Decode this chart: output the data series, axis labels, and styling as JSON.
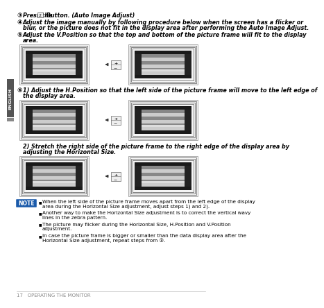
{
  "bg_color": "#ffffff",
  "sidebar_color": "#555555",
  "sidebar_text": "ENGLISH",
  "note_bg": "#1a5aaa",
  "note_text_color": "#ffffff",
  "note_label": "NOTE",
  "footer_text": "17   OPERATING THE MONITOR",
  "step3_circle": "③",
  "step3_text_a": "Press the ",
  "step3_btn": "2",
  "step3_text_b": " Button. (Auto Image Adjust)",
  "step4_circle": "④",
  "step4_line1": "Adjust the image manually by following procedure below when the screen has a flicker or",
  "step4_line2": "blur, or the picture does not fit in the display area after performing the Auto Image Adjust.",
  "step5_circle": "⑤",
  "step5_line1": "Adjust the V.Position so that the top and bottom of the picture frame will fit to the display",
  "step5_line2": "area.",
  "step6_circle": "⑥",
  "sub1_line1": "1) Adjust the H.Position so that the left side of the picture frame will move to the left edge of",
  "sub1_line2": "     the display area.",
  "sub2_line1": "2) Stretch the right side of the picture frame to the right edge of the display area by",
  "sub2_line2": "     adjusting the Horizontal Size.",
  "note_b1_l1": "When the left side of the picture frame moves apart from the left edge of the display",
  "note_b1_l2": "area during the Horizontal Size adjustment, adjust steps 1) and 2).",
  "note_b2_l1": "Another way to make the Horizontal Size adjustment is to correct the vertical wavy",
  "note_b2_l2": "lines in the zebra pattern.",
  "note_b3_l1": "The picture may flicker during the Horizontal Size, H.Position and V.Position",
  "note_b3_l2": "adjustment.",
  "note_b4_l1": "In case the picture frame is bigger or smaller than the data display area after the",
  "note_b4_l2": "Horizontal Size adjustment, repeat steps from ③."
}
